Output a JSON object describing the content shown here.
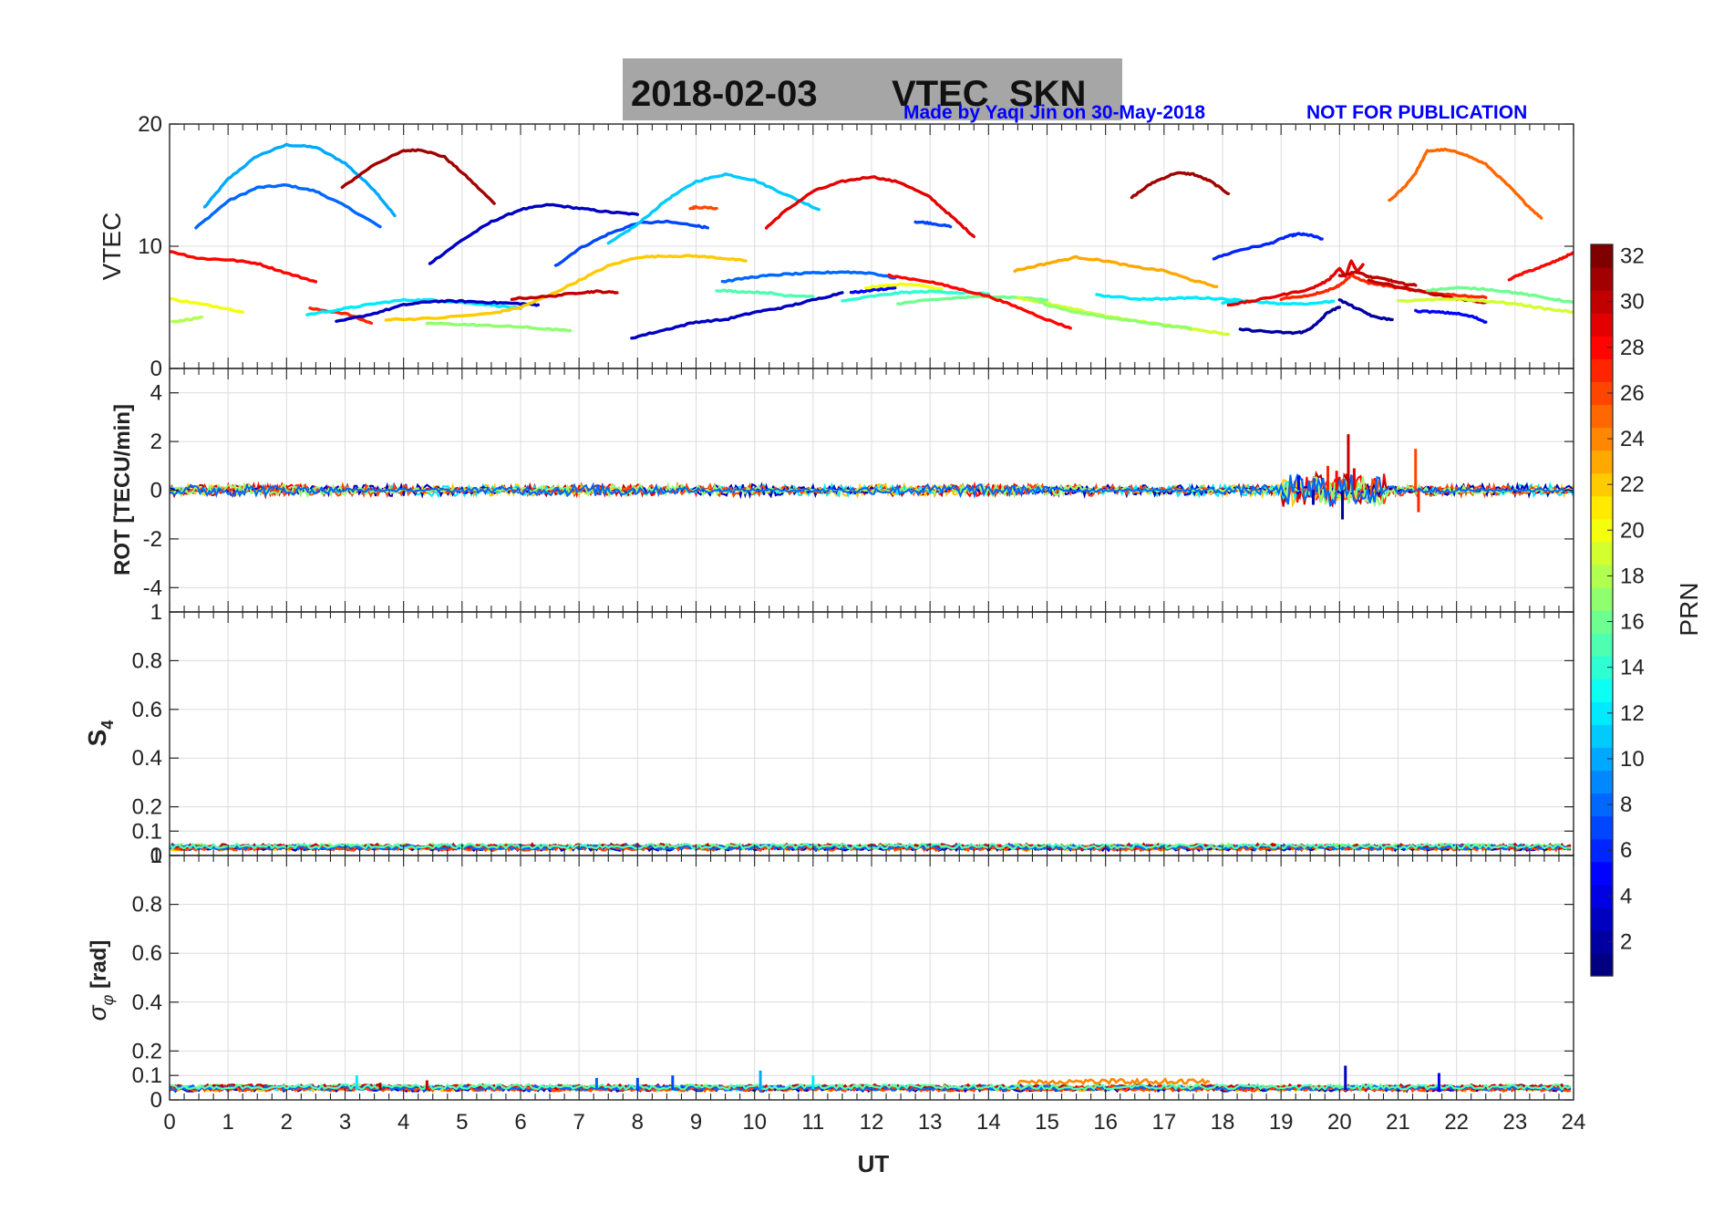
{
  "title": {
    "date": "2018-02-03",
    "text": "VTEC  SKN",
    "box_color": "#a6a6a6"
  },
  "credit": "Made by Yaqi Jin on 30-May-2018",
  "disclaimer": "NOT FOR PUBLICATION",
  "note_color": "#0000ff",
  "chart_data": [
    {
      "type": "line",
      "panel": "vtec",
      "ylabel": "VTEC",
      "xlim": [
        0,
        24
      ],
      "ylim": [
        0,
        20
      ],
      "yticks": [
        0,
        10,
        20
      ],
      "grid": true,
      "series": [
        {
          "prn": 10,
          "x": [
            0.6,
            1.0,
            1.5,
            2.0,
            2.5,
            3.0,
            3.5,
            3.85
          ],
          "y": [
            13.2,
            15.5,
            17.4,
            18.3,
            18.1,
            16.8,
            14.6,
            12.5
          ]
        },
        {
          "prn": 8,
          "x": [
            0.45,
            1.0,
            1.5,
            2.0,
            2.5,
            3.0,
            3.6
          ],
          "y": [
            11.5,
            13.7,
            14.8,
            15.0,
            14.5,
            13.3,
            11.6
          ]
        },
        {
          "prn": 31,
          "x": [
            2.95,
            3.5,
            4.0,
            4.3,
            4.7,
            5.1,
            5.55
          ],
          "y": [
            14.8,
            16.7,
            17.8,
            17.9,
            17.3,
            15.6,
            13.5
          ]
        },
        {
          "prn": 3,
          "x": [
            4.45,
            5.0,
            5.5,
            6.0,
            6.5,
            7.0,
            7.5,
            8.0
          ],
          "y": [
            8.6,
            10.5,
            12.0,
            13.0,
            13.4,
            13.1,
            12.8,
            12.6
          ]
        },
        {
          "prn": 7,
          "x": [
            6.6,
            7.0,
            7.5,
            8.0,
            8.5,
            9.0,
            9.2
          ],
          "y": [
            8.4,
            9.8,
            11.0,
            11.9,
            12.0,
            11.7,
            11.5
          ]
        },
        {
          "prn": 11,
          "x": [
            7.5,
            8.0,
            8.5,
            9.0,
            9.5,
            10.0,
            10.5,
            11.1
          ],
          "y": [
            10.2,
            11.8,
            13.8,
            15.3,
            15.9,
            15.4,
            14.3,
            13.0
          ]
        },
        {
          "prn": 26,
          "x": [
            8.9,
            9.0,
            9.35
          ],
          "y": [
            13.1,
            13.2,
            13.1
          ]
        },
        {
          "prn": 29,
          "x": [
            10.2,
            10.5,
            11.0,
            11.5,
            12.0,
            12.5,
            13.0,
            13.4,
            13.75
          ],
          "y": [
            11.5,
            12.8,
            14.5,
            15.3,
            15.7,
            15.2,
            14.0,
            12.3,
            10.8
          ]
        },
        {
          "prn": 7,
          "x": [
            12.75,
            13.0,
            13.35
          ],
          "y": [
            12.0,
            11.9,
            11.6
          ]
        },
        {
          "prn": 31,
          "x": [
            16.45,
            16.8,
            17.2,
            17.5,
            17.8,
            18.1
          ],
          "y": [
            14.0,
            15.2,
            16.0,
            15.9,
            15.3,
            14.3
          ]
        },
        {
          "prn": 6,
          "x": [
            17.85,
            18.3,
            18.8,
            19.1,
            19.3,
            19.5,
            19.7
          ],
          "y": [
            9.0,
            9.7,
            10.2,
            10.8,
            11.0,
            10.9,
            10.6
          ]
        },
        {
          "prn": 25,
          "x": [
            20.85,
            21.1,
            21.3,
            21.5,
            21.8,
            22.1,
            22.5,
            22.9,
            23.2,
            23.45
          ],
          "y": [
            13.7,
            14.8,
            16.0,
            17.8,
            17.9,
            17.6,
            16.7,
            14.9,
            13.4,
            12.3
          ]
        },
        {
          "prn": 28,
          "x": [
            0.0,
            0.5,
            1.0,
            1.5,
            2.0,
            2.5
          ],
          "y": [
            9.6,
            9.0,
            8.9,
            8.6,
            7.8,
            7.1
          ]
        },
        {
          "prn": 20,
          "x": [
            0.0,
            0.5,
            1.0,
            1.25
          ],
          "y": [
            5.7,
            5.3,
            4.9,
            4.6
          ]
        },
        {
          "prn": 18,
          "x": [
            0.05,
            0.3,
            0.55
          ],
          "y": [
            3.8,
            4.0,
            4.2
          ]
        },
        {
          "prn": 27,
          "x": [
            2.4,
            3.0,
            3.45
          ],
          "y": [
            4.9,
            4.5,
            3.7
          ]
        },
        {
          "prn": 12,
          "x": [
            2.35,
            3.0,
            3.5,
            4.0,
            4.5,
            5.0,
            5.5,
            6.0
          ],
          "y": [
            4.4,
            4.9,
            5.3,
            5.6,
            5.6,
            5.4,
            5.2,
            4.9
          ]
        },
        {
          "prn": 3,
          "x": [
            2.85,
            3.5,
            4.0,
            4.5,
            5.0,
            5.5,
            6.0,
            6.3
          ],
          "y": [
            3.8,
            4.5,
            5.2,
            5.5,
            5.5,
            5.4,
            5.3,
            5.2
          ]
        },
        {
          "prn": 22,
          "x": [
            3.7,
            4.5,
            5.5,
            6.0,
            6.5,
            7.0,
            7.5,
            8.0,
            8.5,
            9.0,
            9.5,
            9.85
          ],
          "y": [
            4.0,
            4.1,
            4.5,
            5.0,
            6.0,
            7.2,
            8.4,
            9.1,
            9.2,
            9.2,
            9.0,
            8.8
          ]
        },
        {
          "prn": 17,
          "x": [
            4.4,
            5.0,
            5.5,
            6.0,
            6.5,
            6.85
          ],
          "y": [
            3.7,
            3.6,
            3.5,
            3.4,
            3.2,
            3.1
          ]
        },
        {
          "prn": 30,
          "x": [
            5.85,
            6.5,
            7.0,
            7.3,
            7.65
          ],
          "y": [
            5.7,
            5.9,
            6.2,
            6.3,
            6.2
          ]
        },
        {
          "prn": 3,
          "x": [
            7.9,
            8.5,
            9.0,
            9.5,
            10.0,
            10.5,
            11.0,
            11.5
          ],
          "y": [
            2.5,
            3.2,
            3.8,
            4.0,
            4.6,
            5.0,
            5.6,
            6.2
          ]
        },
        {
          "prn": 15,
          "x": [
            9.35,
            9.7,
            10.2,
            10.5,
            11.0
          ],
          "y": [
            6.4,
            6.3,
            6.2,
            6.0,
            5.9
          ]
        },
        {
          "prn": 8,
          "x": [
            9.45,
            10.0,
            10.5,
            11.0,
            11.5,
            12.0,
            12.4
          ],
          "y": [
            7.1,
            7.5,
            7.7,
            7.8,
            7.9,
            7.8,
            7.4
          ]
        },
        {
          "prn": 5,
          "x": [
            11.65,
            12.0,
            12.4
          ],
          "y": [
            6.2,
            6.4,
            6.6
          ]
        },
        {
          "prn": 20,
          "x": [
            11.9,
            12.5,
            12.8,
            13.2
          ],
          "y": [
            6.6,
            6.9,
            6.8,
            6.5
          ]
        },
        {
          "prn": 14,
          "x": [
            11.5,
            12.0,
            12.5,
            13.0,
            13.5,
            14.0
          ],
          "y": [
            5.5,
            5.9,
            6.2,
            6.3,
            6.2,
            6.1
          ]
        },
        {
          "prn": 16,
          "x": [
            12.45,
            13.0,
            13.5,
            14.0,
            14.5,
            15.0
          ],
          "y": [
            5.3,
            5.6,
            5.8,
            5.9,
            5.8,
            5.6
          ]
        },
        {
          "prn": 28,
          "x": [
            12.3,
            13.0,
            13.5,
            14.0,
            14.5,
            15.0,
            15.4
          ],
          "y": [
            7.6,
            7.1,
            6.5,
            5.9,
            5.0,
            4.0,
            3.3
          ]
        },
        {
          "prn": 23,
          "x": [
            14.45,
            15.0,
            15.5,
            16.0,
            16.5,
            17.0,
            17.5,
            17.9
          ],
          "y": [
            8.0,
            8.6,
            9.1,
            8.8,
            8.3,
            8.0,
            7.2,
            6.7
          ]
        },
        {
          "prn": 12,
          "x": [
            15.85,
            16.5,
            17.0,
            17.5,
            18.0,
            18.5
          ],
          "y": [
            6.0,
            5.7,
            5.7,
            5.8,
            5.7,
            5.5
          ]
        },
        {
          "prn": 19,
          "x": [
            14.5,
            15.0,
            15.5,
            16.0,
            16.5,
            17.0,
            17.5,
            18.1
          ],
          "y": [
            5.8,
            5.3,
            4.8,
            4.3,
            3.9,
            3.6,
            3.2,
            2.8
          ]
        },
        {
          "prn": 17,
          "x": [
            14.7,
            15.0,
            15.5,
            16.0,
            16.5,
            17.0,
            17.45
          ],
          "y": [
            5.8,
            5.2,
            4.6,
            4.2,
            3.9,
            3.5,
            3.3
          ]
        },
        {
          "prn": 2,
          "x": [
            18.3,
            18.8,
            19.2,
            19.4,
            19.6,
            19.8,
            20.0
          ],
          "y": [
            3.2,
            3.0,
            2.9,
            3.0,
            3.6,
            4.6,
            5.0
          ]
        },
        {
          "prn": 12,
          "x": [
            18.0,
            18.5,
            19.0,
            19.5,
            19.9
          ],
          "y": [
            5.4,
            5.5,
            5.3,
            5.3,
            5.5
          ]
        },
        {
          "prn": 29,
          "x": [
            18.1,
            18.5,
            19.0,
            19.5,
            19.8,
            20.0,
            20.1,
            20.2,
            20.3,
            20.4
          ],
          "y": [
            5.2,
            5.5,
            6.0,
            6.5,
            7.2,
            8.2,
            7.5,
            8.8,
            7.9,
            8.5
          ]
        },
        {
          "prn": 27,
          "x": [
            19.0,
            19.5,
            19.8,
            20.0,
            20.2,
            20.5,
            21.0,
            21.5,
            22.0,
            22.5
          ],
          "y": [
            5.7,
            6.0,
            6.4,
            6.8,
            7.6,
            7.0,
            6.6,
            6.2,
            6.0,
            5.8
          ]
        },
        {
          "prn": 30,
          "x": [
            20.0,
            20.3,
            20.5,
            20.8,
            21.0,
            21.3
          ],
          "y": [
            7.6,
            7.9,
            7.5,
            7.3,
            7.0,
            6.8
          ]
        },
        {
          "prn": 30,
          "x": [
            20.5,
            21.0,
            21.5,
            22.0,
            22.5
          ],
          "y": [
            7.2,
            6.7,
            6.2,
            5.7,
            5.4
          ]
        },
        {
          "prn": 2,
          "x": [
            20.0,
            20.3,
            20.6,
            20.9
          ],
          "y": [
            5.6,
            4.9,
            4.2,
            4.0
          ]
        },
        {
          "prn": 5,
          "x": [
            21.3,
            21.7,
            22.0,
            22.3,
            22.5
          ],
          "y": [
            4.7,
            4.6,
            4.5,
            4.2,
            3.8
          ]
        },
        {
          "prn": 16,
          "x": [
            21.5,
            22.0,
            22.5,
            23.0,
            23.5,
            24.0
          ],
          "y": [
            6.4,
            6.6,
            6.5,
            6.2,
            5.8,
            5.4
          ]
        },
        {
          "prn": 19,
          "x": [
            21.0,
            21.5,
            22.0,
            22.5,
            23.0,
            23.5,
            24.0
          ],
          "y": [
            5.5,
            5.6,
            5.7,
            5.5,
            5.3,
            4.9,
            4.6
          ]
        },
        {
          "prn": 28,
          "x": [
            22.9,
            23.2,
            23.5,
            23.8,
            24.0
          ],
          "y": [
            7.3,
            7.9,
            8.4,
            9.0,
            9.5
          ]
        }
      ]
    },
    {
      "type": "line",
      "panel": "rot",
      "ylabel": "ROT [TECU/min]",
      "xlim": [
        0,
        24
      ],
      "ylim": [
        -5,
        5
      ],
      "yticks": [
        -4,
        -2,
        0,
        2,
        4
      ],
      "grid": true,
      "noise_amplitude": 0.25,
      "spikes": [
        {
          "x": 19.3,
          "y": 0.6,
          "prn": 5
        },
        {
          "x": 19.55,
          "y": -0.6,
          "prn": 3
        },
        {
          "x": 19.8,
          "y": 1.0,
          "prn": 27
        },
        {
          "x": 19.95,
          "y": 0.8,
          "prn": 28
        },
        {
          "x": 20.05,
          "y": -1.2,
          "prn": 2
        },
        {
          "x": 20.15,
          "y": 2.3,
          "prn": 30
        },
        {
          "x": 20.25,
          "y": 0.9,
          "prn": 29
        },
        {
          "x": 21.3,
          "y": 1.7,
          "prn": 26
        },
        {
          "x": 21.35,
          "y": -0.9,
          "prn": 27
        }
      ]
    },
    {
      "type": "line",
      "panel": "s4",
      "ylabel": "S4",
      "ylabel_main": "S",
      "ylabel_sub": "4",
      "xlim": [
        0,
        24
      ],
      "ylim": [
        0,
        1
      ],
      "yticks": [
        0,
        0.1,
        0.2,
        0.4,
        0.6,
        0.8,
        1
      ],
      "grid": true,
      "baseline": 0.03,
      "noise_amplitude": 0.02
    },
    {
      "type": "line",
      "panel": "sigma-phi",
      "ylabel": "σφ [rad]",
      "ylabel_main": "σ",
      "ylabel_sub": "φ",
      "ylabel_unit": " [rad]",
      "xlim": [
        0,
        24
      ],
      "ylim": [
        0,
        1
      ],
      "yticks": [
        0,
        0.1,
        0.2,
        0.4,
        0.6,
        0.8,
        1
      ],
      "xticks": [
        0,
        1,
        2,
        3,
        4,
        5,
        6,
        7,
        8,
        9,
        10,
        11,
        12,
        13,
        14,
        15,
        16,
        17,
        18,
        19,
        20,
        21,
        22,
        23,
        24
      ],
      "xlabel": "UT",
      "grid": true,
      "baseline": 0.045,
      "noise_amplitude": 0.02,
      "bump": {
        "x_from": 14.5,
        "x_to": 17.8,
        "y": 0.075,
        "prn": 24
      },
      "spikes": [
        {
          "x": 3.2,
          "y": 0.1,
          "prn": 12
        },
        {
          "x": 3.6,
          "y": 0.07,
          "prn": 31
        },
        {
          "x": 4.4,
          "y": 0.08,
          "prn": 30
        },
        {
          "x": 7.3,
          "y": 0.09,
          "prn": 8
        },
        {
          "x": 8.0,
          "y": 0.09,
          "prn": 7
        },
        {
          "x": 8.6,
          "y": 0.1,
          "prn": 7
        },
        {
          "x": 10.1,
          "y": 0.12,
          "prn": 10
        },
        {
          "x": 11.0,
          "y": 0.1,
          "prn": 12
        },
        {
          "x": 20.1,
          "y": 0.14,
          "prn": 3
        },
        {
          "x": 21.7,
          "y": 0.11,
          "prn": 5
        }
      ]
    },
    {
      "type": "heatmap",
      "panel": "colorbar",
      "label": "PRN",
      "range": [
        1,
        32
      ],
      "ticks": [
        2,
        4,
        6,
        8,
        10,
        12,
        14,
        16,
        18,
        20,
        22,
        24,
        26,
        28,
        30,
        32
      ],
      "colormap": "jet"
    }
  ]
}
